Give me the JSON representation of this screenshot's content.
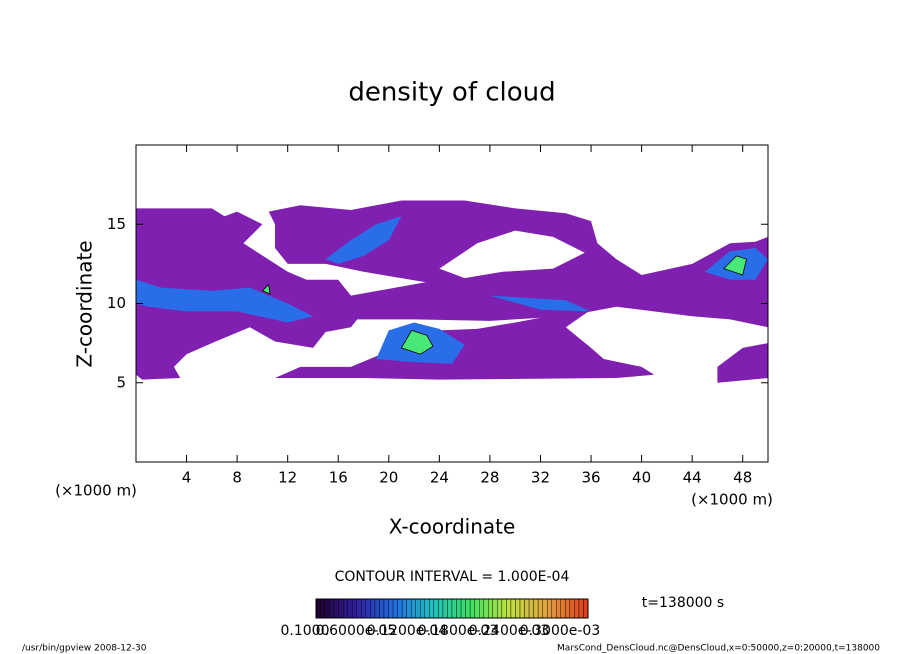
{
  "chart_data": {
    "type": "contour",
    "title": "density of cloud",
    "x_label": "X-coordinate",
    "y_label": "Z-coordinate",
    "x_unit": "(×1000 m)",
    "y_unit": "(×1000 m)",
    "xlim": [
      0,
      50
    ],
    "ylim": [
      0,
      20
    ],
    "xticks": [
      4,
      8,
      12,
      16,
      20,
      24,
      28,
      32,
      36,
      40,
      44,
      48
    ],
    "yticks": [
      5,
      10,
      15
    ],
    "contour_interval": "CONTOUR INTERVAL = 1.000E-04",
    "time_label": "t=138000 s",
    "footer_left": "/usr/bin/gpview   2008-12-30",
    "footer_right": "MarsCond_DensCloud.nc@DensCloud,x=0:50000,z=0:20000,t=138000",
    "colorbar": {
      "colors": [
        "#200030",
        "#3020a0",
        "#2070e0",
        "#20c0c0",
        "#40e060",
        "#c0e040",
        "#e0a040",
        "#e04020"
      ],
      "labels": [
        "0.1000",
        "0.6000e-05",
        "0.1200e-04",
        "0.1800e-03",
        "0.2400e-03",
        "0.3000e-03"
      ]
    },
    "regions": [
      {
        "level": 1e-05,
        "color": "#8020b0",
        "rings": [
          [
            [
              0,
              16
            ],
            [
              6,
              16
            ],
            [
              7,
              15.5
            ],
            [
              8,
              15.8
            ],
            [
              10,
              15
            ],
            [
              8.5,
              13.8
            ],
            [
              12,
              12
            ],
            [
              13.5,
              11.5
            ],
            [
              16,
              11.5
            ],
            [
              17,
              10.5
            ],
            [
              17.5,
              9
            ],
            [
              17,
              8.5
            ],
            [
              15,
              8.2
            ],
            [
              14,
              7.2
            ],
            [
              11,
              7.6
            ],
            [
              9,
              8.5
            ],
            [
              6,
              7.5
            ],
            [
              4,
              6.8
            ],
            [
              3,
              6
            ],
            [
              3.5,
              5.3
            ],
            [
              0.5,
              5.2
            ],
            [
              0,
              5.5
            ]
          ]
        ]
      },
      {
        "level": 1e-05,
        "color": "#8020b0",
        "rings": [
          [
            [
              10.5,
              15.8
            ],
            [
              13,
              16.2
            ],
            [
              17,
              15.9
            ],
            [
              21,
              16.5
            ],
            [
              26,
              16.5
            ],
            [
              30,
              16
            ],
            [
              34,
              15.7
            ],
            [
              36,
              15.2
            ],
            [
              36.5,
              13.8
            ],
            [
              38,
              12.8
            ],
            [
              40,
              11.8
            ],
            [
              44,
              12.5
            ],
            [
              47,
              13.8
            ],
            [
              49,
              13.9
            ],
            [
              50,
              14.2
            ],
            [
              50,
              10.2
            ],
            [
              48,
              9.5
            ],
            [
              44,
              10.1
            ],
            [
              36,
              10.3
            ],
            [
              30,
              10.8
            ],
            [
              24,
              11.2
            ],
            [
              18,
              12
            ],
            [
              15,
              12.5
            ],
            [
              12,
              12.5
            ],
            [
              11,
              13.5
            ],
            [
              11,
              15
            ]
          ],
          [
            [
              24,
              12.2
            ],
            [
              27,
              13.8
            ],
            [
              30,
              14.6
            ],
            [
              33,
              14.2
            ],
            [
              35.5,
              13.2
            ],
            [
              33,
              12.2
            ],
            [
              29,
              12
            ],
            [
              26,
              11.6
            ]
          ]
        ]
      },
      {
        "level": 1e-05,
        "color": "#8020b0",
        "rings": [
          [
            [
              17,
              10.5
            ],
            [
              24,
              11.5
            ],
            [
              30,
              11
            ],
            [
              36,
              10.8
            ],
            [
              44,
              11.3
            ],
            [
              50,
              10.2
            ],
            [
              50,
              8.5
            ],
            [
              47,
              9
            ],
            [
              44,
              9.2
            ],
            [
              38,
              9.8
            ],
            [
              34,
              9.2
            ],
            [
              28,
              8.9
            ],
            [
              22,
              9
            ],
            [
              17,
              9
            ]
          ]
        ]
      },
      {
        "level": 1e-05,
        "color": "#8020b0",
        "rings": [
          [
            [
              11,
              5.3
            ],
            [
              13,
              6
            ],
            [
              17,
              6
            ],
            [
              20,
              7
            ],
            [
              22,
              8.5
            ],
            [
              24,
              8.3
            ],
            [
              27,
              8.4
            ],
            [
              30,
              8.8
            ],
            [
              34,
              9.4
            ],
            [
              36,
              9.6
            ],
            [
              34,
              8.5
            ],
            [
              36,
              7.2
            ],
            [
              37,
              6.5
            ],
            [
              40,
              6
            ],
            [
              41,
              5.5
            ],
            [
              38,
              5.3
            ],
            [
              24,
              5.2
            ],
            [
              18,
              5.3
            ]
          ]
        ]
      },
      {
        "level": 1e-05,
        "color": "#8020b0",
        "rings": [
          [
            [
              46,
              5
            ],
            [
              50,
              5.3
            ],
            [
              50,
              7.5
            ],
            [
              48,
              7.2
            ],
            [
              46,
              6
            ]
          ]
        ]
      },
      {
        "level": 5e-05,
        "color": "#2a6de8",
        "rings": [
          [
            [
              0,
              11.5
            ],
            [
              2,
              11
            ],
            [
              6,
              10.8
            ],
            [
              9,
              11
            ],
            [
              12,
              10
            ],
            [
              14,
              9.2
            ],
            [
              12,
              8.8
            ],
            [
              8,
              9.5
            ],
            [
              4,
              9.5
            ],
            [
              1,
              9.8
            ],
            [
              0,
              10
            ]
          ]
        ]
      },
      {
        "level": 5e-05,
        "color": "#2a6de8",
        "rings": [
          [
            [
              15,
              12.8
            ],
            [
              17,
              14
            ],
            [
              19,
              15
            ],
            [
              21,
              15.5
            ],
            [
              20,
              14
            ],
            [
              18,
              13
            ],
            [
              16,
              12.5
            ]
          ]
        ]
      },
      {
        "level": 5e-05,
        "color": "#2a6de8",
        "rings": [
          [
            [
              19,
              6.5
            ],
            [
              20,
              8.3
            ],
            [
              22,
              8.8
            ],
            [
              24,
              8.4
            ],
            [
              26,
              7.4
            ],
            [
              25,
              6.2
            ],
            [
              22,
              6.3
            ]
          ]
        ]
      },
      {
        "level": 5e-05,
        "color": "#2a6de8",
        "rings": [
          [
            [
              45,
              12
            ],
            [
              47,
              13.3
            ],
            [
              49,
              13.5
            ],
            [
              50,
              12.8
            ],
            [
              49,
              11.5
            ],
            [
              47,
              11.5
            ]
          ]
        ]
      },
      {
        "level": 5e-05,
        "color": "#2a6de8",
        "rings": [
          [
            [
              28,
              10.5
            ],
            [
              34,
              10.2
            ],
            [
              36,
              9.5
            ],
            [
              32,
              9.6
            ]
          ]
        ]
      },
      {
        "level": 0.00012,
        "color": "#48e878",
        "rings": [
          [
            [
              21,
              7.2
            ],
            [
              21.8,
              8.3
            ],
            [
              23,
              8
            ],
            [
              23.5,
              7.3
            ],
            [
              22.5,
              6.8
            ]
          ]
        ]
      },
      {
        "level": 0.00012,
        "color": "#48e878",
        "rings": [
          [
            [
              46.5,
              12.2
            ],
            [
              47.5,
              13
            ],
            [
              48.3,
              12.8
            ],
            [
              48,
              11.8
            ]
          ]
        ]
      },
      {
        "level": 0.00012,
        "color": "#48e878",
        "rings": [
          [
            [
              10,
              10.8
            ],
            [
              10.5,
              11.2
            ],
            [
              10.6,
              10.6
            ]
          ]
        ]
      }
    ]
  }
}
